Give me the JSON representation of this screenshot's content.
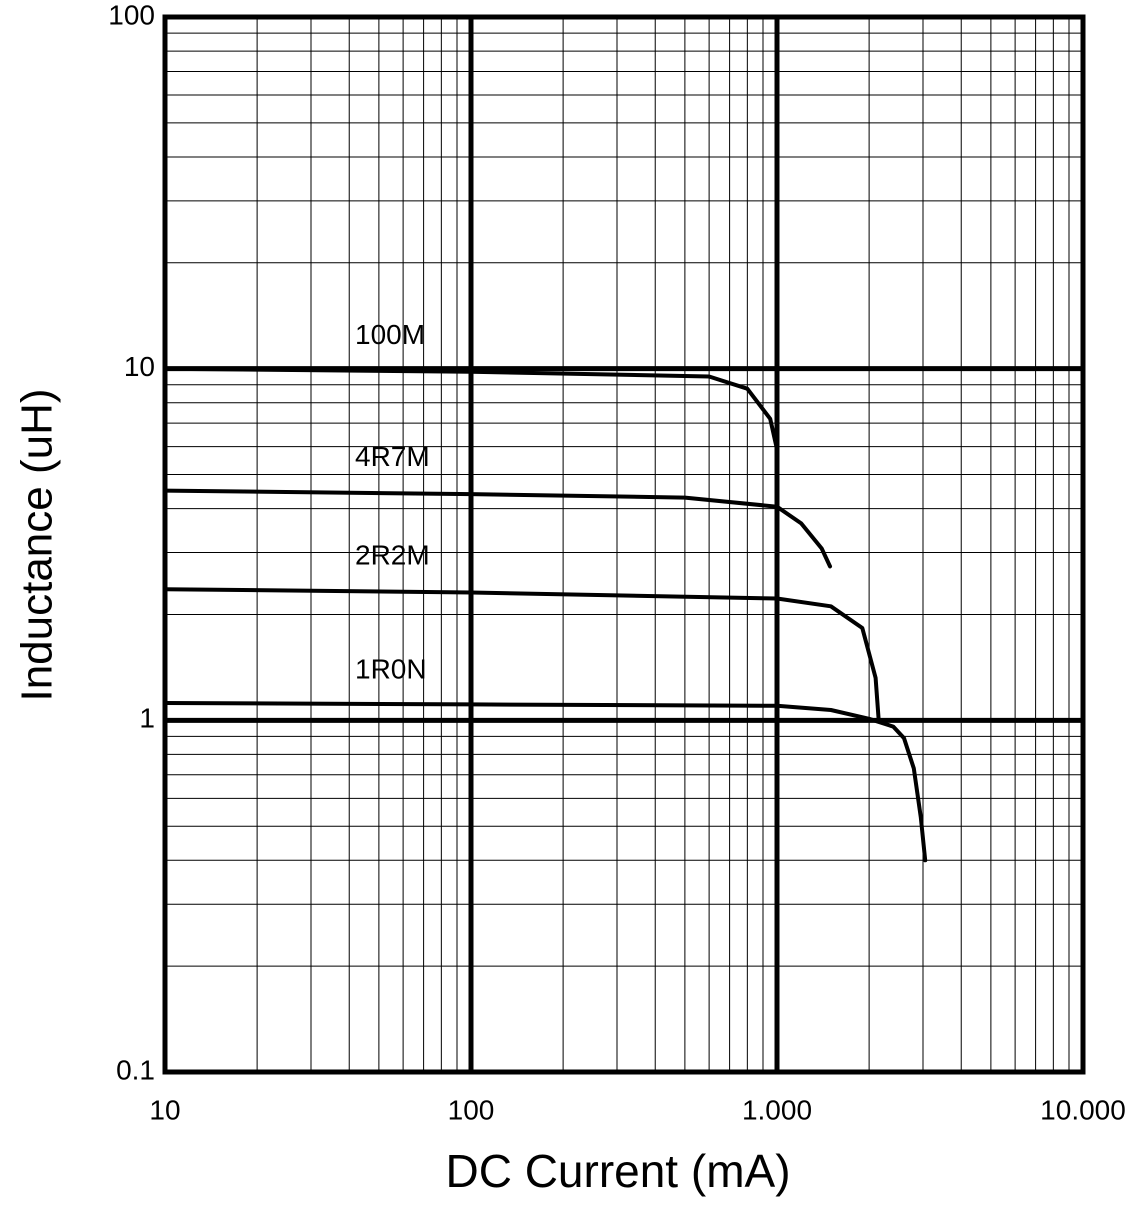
{
  "chart_data": {
    "type": "line",
    "xlabel": "DC  Current (mA)",
    "ylabel": "Inductance (uH)",
    "xscale": "log",
    "yscale": "log",
    "grid": true,
    "xlim": [
      10,
      10000
    ],
    "ylim": [
      0.1,
      100
    ],
    "xticks": [
      10,
      100,
      {
        "value": 1000,
        "label": "1.000"
      },
      {
        "value": 10000,
        "label": "10.000"
      }
    ],
    "yticks": [
      0.1,
      1,
      10,
      100
    ],
    "series": [
      {
        "name": "100M",
        "color": "#000000",
        "x": [
          10,
          100,
          600,
          800,
          950,
          1000
        ],
        "values": [
          10,
          9.8,
          9.5,
          8.77,
          7.2,
          5.9
        ]
      },
      {
        "name": "4R7M",
        "color": "#000000",
        "x": [
          10,
          100,
          500,
          1000,
          1200,
          1400,
          1490
        ],
        "values": [
          4.5,
          4.4,
          4.3,
          4.05,
          3.63,
          3.08,
          2.74
        ]
      },
      {
        "name": "2R2M",
        "color": "#000000",
        "x": [
          10,
          100,
          1000,
          1500,
          1900,
          2100,
          2150
        ],
        "values": [
          2.36,
          2.31,
          2.22,
          2.11,
          1.83,
          1.32,
          1.0
        ]
      },
      {
        "name": "1R0N",
        "color": "#000000",
        "x": [
          10,
          100,
          1000,
          1500,
          2000,
          2400,
          2600,
          2800,
          2950,
          3050
        ],
        "values": [
          1.12,
          1.11,
          1.1,
          1.07,
          1.01,
          0.96,
          0.89,
          0.73,
          0.53,
          0.4
        ]
      }
    ]
  }
}
